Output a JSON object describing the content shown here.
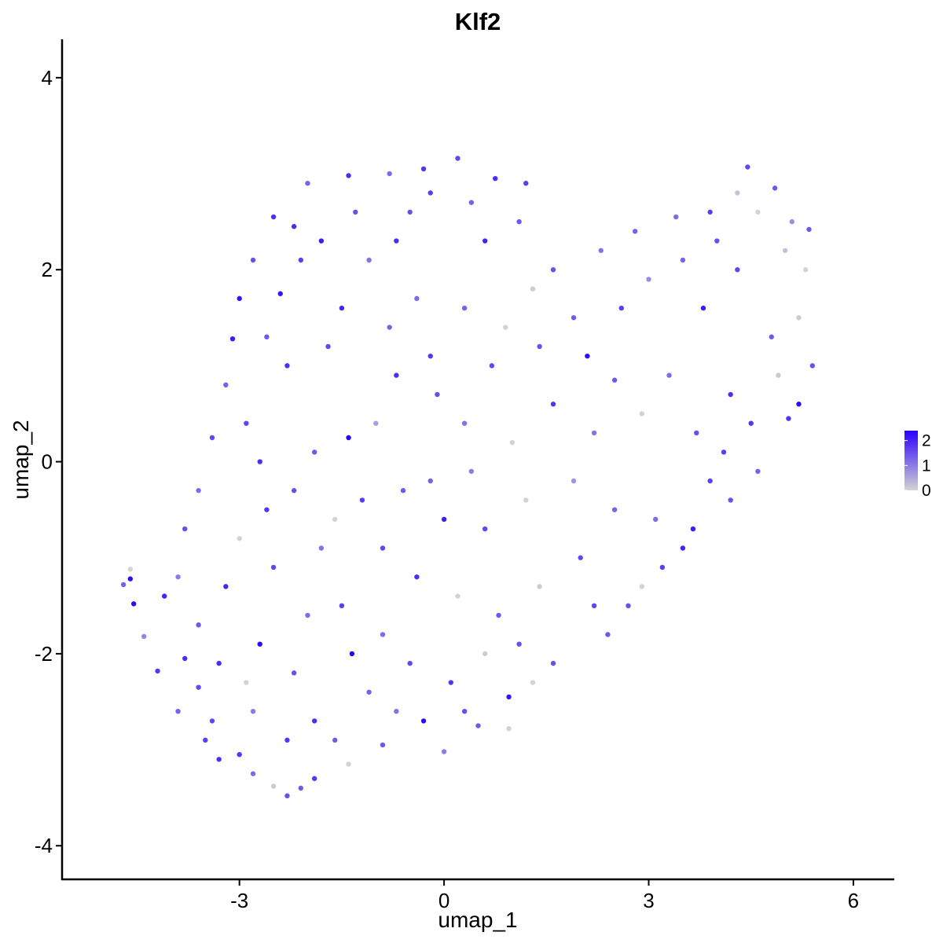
{
  "chart_data": {
    "type": "scatter",
    "title": "Klf2",
    "xlabel": "umap_1",
    "ylabel": "umap_2",
    "xlim": [
      -5.6,
      6.6
    ],
    "ylim": [
      -4.35,
      4.4
    ],
    "xticks": [
      -3,
      0,
      3,
      6
    ],
    "xtick_labels": [
      "-3",
      "0",
      "3",
      "6"
    ],
    "yticks": [
      -4,
      -2,
      0,
      2,
      4
    ],
    "ytick_labels": [
      "-4",
      "-2",
      "0",
      "2",
      "4"
    ],
    "grid": false,
    "color_scale": {
      "name": "expression",
      "low_color": "#d3d3d3",
      "high_color": "#2b00ff",
      "min": 0,
      "max": 2.4,
      "ticks": [
        0,
        1,
        2
      ],
      "tick_labels": [
        "0",
        "1",
        "2"
      ]
    },
    "legend_position": "right",
    "points": [
      {
        "x": -4.7,
        "y": -1.28,
        "v": 1.3
      },
      {
        "x": -4.6,
        "y": -1.12,
        "v": 0.0
      },
      {
        "x": -4.6,
        "y": -1.22,
        "v": 2.3
      },
      {
        "x": -4.55,
        "y": -1.48,
        "v": 2.3
      },
      {
        "x": -4.4,
        "y": -1.82,
        "v": 0.9
      },
      {
        "x": -4.2,
        "y": -2.18,
        "v": 1.8
      },
      {
        "x": -4.1,
        "y": -1.4,
        "v": 2.0
      },
      {
        "x": -3.9,
        "y": -2.6,
        "v": 1.3
      },
      {
        "x": -3.8,
        "y": -2.05,
        "v": 1.9
      },
      {
        "x": -3.6,
        "y": -2.35,
        "v": 1.6
      },
      {
        "x": -3.5,
        "y": -2.9,
        "v": 1.7
      },
      {
        "x": -3.3,
        "y": -3.1,
        "v": 1.9
      },
      {
        "x": -3.0,
        "y": -3.05,
        "v": 1.8
      },
      {
        "x": -2.8,
        "y": -3.25,
        "v": 1.2
      },
      {
        "x": -2.5,
        "y": -3.38,
        "v": 0.1
      },
      {
        "x": -2.3,
        "y": -3.48,
        "v": 1.5
      },
      {
        "x": -2.1,
        "y": -3.4,
        "v": 1.4
      },
      {
        "x": -1.9,
        "y": -3.3,
        "v": 1.8
      },
      {
        "x": -1.4,
        "y": -3.15,
        "v": 0.0
      },
      {
        "x": -0.9,
        "y": -2.95,
        "v": 1.4
      },
      {
        "x": -0.3,
        "y": -2.7,
        "v": 2.3
      },
      {
        "x": 0.0,
        "y": -3.02,
        "v": 1.0
      },
      {
        "x": 0.5,
        "y": -2.75,
        "v": 1.4
      },
      {
        "x": 0.95,
        "y": -2.78,
        "v": 0.0
      },
      {
        "x": 0.95,
        "y": -2.45,
        "v": 2.2
      },
      {
        "x": 1.6,
        "y": -2.1,
        "v": 1.5
      },
      {
        "x": 2.4,
        "y": -1.8,
        "v": 1.4
      },
      {
        "x": 2.7,
        "y": -1.5,
        "v": 1.5
      },
      {
        "x": 3.2,
        "y": -1.1,
        "v": 1.7
      },
      {
        "x": 3.5,
        "y": -0.9,
        "v": 2.0
      },
      {
        "x": 3.65,
        "y": -0.7,
        "v": 2.1
      },
      {
        "x": 4.2,
        "y": -0.4,
        "v": 1.5
      },
      {
        "x": 4.6,
        "y": -0.1,
        "v": 1.3
      },
      {
        "x": 5.05,
        "y": 0.45,
        "v": 1.8
      },
      {
        "x": 5.2,
        "y": 0.6,
        "v": 2.3
      },
      {
        "x": 5.4,
        "y": 1.0,
        "v": 1.5
      },
      {
        "x": 5.2,
        "y": 1.5,
        "v": 0.1
      },
      {
        "x": 5.3,
        "y": 2.0,
        "v": 0.0
      },
      {
        "x": 5.35,
        "y": 2.42,
        "v": 1.4
      },
      {
        "x": 5.1,
        "y": 2.5,
        "v": 0.8
      },
      {
        "x": 4.85,
        "y": 2.85,
        "v": 1.4
      },
      {
        "x": 4.45,
        "y": 3.07,
        "v": 1.6
      },
      {
        "x": 4.3,
        "y": 2.8,
        "v": 0.2
      },
      {
        "x": 3.9,
        "y": 2.6,
        "v": 1.7
      },
      {
        "x": 3.4,
        "y": 2.55,
        "v": 1.2
      },
      {
        "x": 2.8,
        "y": 2.4,
        "v": 1.3
      },
      {
        "x": 2.3,
        "y": 2.2,
        "v": 1.1
      },
      {
        "x": 1.6,
        "y": 2.0,
        "v": 1.5
      },
      {
        "x": 1.2,
        "y": 2.9,
        "v": 1.7
      },
      {
        "x": 1.1,
        "y": 2.5,
        "v": 1.4
      },
      {
        "x": 0.75,
        "y": 2.95,
        "v": 1.9
      },
      {
        "x": 0.2,
        "y": 3.16,
        "v": 1.6
      },
      {
        "x": -0.3,
        "y": 3.05,
        "v": 1.8
      },
      {
        "x": -0.8,
        "y": 3.0,
        "v": 1.2
      },
      {
        "x": -1.4,
        "y": 2.98,
        "v": 1.9
      },
      {
        "x": -2.0,
        "y": 2.9,
        "v": 1.3
      },
      {
        "x": -2.5,
        "y": 2.55,
        "v": 1.9
      },
      {
        "x": -2.8,
        "y": 2.1,
        "v": 1.5
      },
      {
        "x": -3.0,
        "y": 1.7,
        "v": 2.2
      },
      {
        "x": -3.1,
        "y": 1.28,
        "v": 2.1
      },
      {
        "x": -3.2,
        "y": 0.8,
        "v": 1.3
      },
      {
        "x": -3.4,
        "y": 0.25,
        "v": 1.6
      },
      {
        "x": -3.6,
        "y": -0.3,
        "v": 1.2
      },
      {
        "x": -3.8,
        "y": -0.7,
        "v": 1.5
      },
      {
        "x": -3.9,
        "y": -1.2,
        "v": 1.0
      },
      {
        "x": -2.7,
        "y": -1.9,
        "v": 2.3
      },
      {
        "x": -2.0,
        "y": -1.6,
        "v": 1.2
      },
      {
        "x": -1.4,
        "y": 0.25,
        "v": 2.4
      },
      {
        "x": -1.35,
        "y": -2.0,
        "v": 2.4
      },
      {
        "x": -2.4,
        "y": 1.75,
        "v": 2.2
      },
      {
        "x": -2.2,
        "y": 2.45,
        "v": 1.9
      },
      {
        "x": -1.7,
        "y": 1.2,
        "v": 1.6
      },
      {
        "x": -1.1,
        "y": 2.1,
        "v": 1.1
      },
      {
        "x": -0.7,
        "y": 0.9,
        "v": 1.9
      },
      {
        "x": -0.4,
        "y": 1.7,
        "v": 1.2
      },
      {
        "x": -0.1,
        "y": 0.7,
        "v": 1.5
      },
      {
        "x": -0.6,
        "y": -0.3,
        "v": 1.4
      },
      {
        "x": -1.2,
        "y": -0.4,
        "v": 1.7
      },
      {
        "x": -1.8,
        "y": -0.9,
        "v": 1.1
      },
      {
        "x": -2.6,
        "y": -0.5,
        "v": 1.8
      },
      {
        "x": -3.0,
        "y": -0.8,
        "v": 0.0
      },
      {
        "x": -2.9,
        "y": 0.4,
        "v": 1.6
      },
      {
        "x": -2.3,
        "y": 1.0,
        "v": 1.9
      },
      {
        "x": -1.9,
        "y": 0.1,
        "v": 1.4
      },
      {
        "x": -1.0,
        "y": 0.4,
        "v": 0.6
      },
      {
        "x": -0.5,
        "y": 2.6,
        "v": 1.5
      },
      {
        "x": 0.6,
        "y": 2.3,
        "v": 2.0
      },
      {
        "x": 0.3,
        "y": 1.6,
        "v": 1.3
      },
      {
        "x": 0.9,
        "y": 1.4,
        "v": 0.0
      },
      {
        "x": 1.4,
        "y": 1.2,
        "v": 1.5
      },
      {
        "x": 2.1,
        "y": 1.1,
        "v": 2.3
      },
      {
        "x": 2.5,
        "y": 0.85,
        "v": 1.4
      },
      {
        "x": 3.0,
        "y": 1.9,
        "v": 0.8
      },
      {
        "x": 3.8,
        "y": 1.6,
        "v": 2.1
      },
      {
        "x": 4.3,
        "y": 2.0,
        "v": 1.6
      },
      {
        "x": 4.8,
        "y": 1.3,
        "v": 1.4
      },
      {
        "x": 4.2,
        "y": 0.7,
        "v": 1.9
      },
      {
        "x": 3.7,
        "y": 0.3,
        "v": 1.5
      },
      {
        "x": 3.3,
        "y": 0.9,
        "v": 1.2
      },
      {
        "x": 2.9,
        "y": 0.5,
        "v": 0.0
      },
      {
        "x": 2.2,
        "y": 0.3,
        "v": 1.1
      },
      {
        "x": 1.6,
        "y": 0.6,
        "v": 1.8
      },
      {
        "x": 1.0,
        "y": 0.2,
        "v": 0.0
      },
      {
        "x": 0.4,
        "y": -0.1,
        "v": 1.0
      },
      {
        "x": 0.0,
        "y": -0.6,
        "v": 2.1
      },
      {
        "x": 0.6,
        "y": -0.7,
        "v": 1.6
      },
      {
        "x": 1.2,
        "y": -0.4,
        "v": 0.0
      },
      {
        "x": 1.9,
        "y": -0.2,
        "v": 0.7
      },
      {
        "x": 2.5,
        "y": -0.5,
        "v": 1.3
      },
      {
        "x": 2.0,
        "y": -1.0,
        "v": 1.6
      },
      {
        "x": 1.4,
        "y": -1.3,
        "v": 0.1
      },
      {
        "x": 0.8,
        "y": -1.6,
        "v": 1.4
      },
      {
        "x": 0.2,
        "y": -1.4,
        "v": 0.0
      },
      {
        "x": -0.4,
        "y": -1.2,
        "v": 1.9
      },
      {
        "x": -0.9,
        "y": -1.8,
        "v": 1.2
      },
      {
        "x": -1.5,
        "y": -1.5,
        "v": 1.7
      },
      {
        "x": -2.2,
        "y": -2.2,
        "v": 1.5
      },
      {
        "x": -2.8,
        "y": -2.6,
        "v": 1.0
      },
      {
        "x": -3.3,
        "y": -2.1,
        "v": 1.9
      },
      {
        "x": -3.6,
        "y": -1.7,
        "v": 1.4
      },
      {
        "x": -3.2,
        "y": -1.3,
        "v": 2.0
      },
      {
        "x": -2.5,
        "y": -1.1,
        "v": 1.6
      },
      {
        "x": -1.9,
        "y": -2.7,
        "v": 1.9
      },
      {
        "x": -1.1,
        "y": -2.4,
        "v": 1.3
      },
      {
        "x": -0.5,
        "y": -2.1,
        "v": 1.6
      },
      {
        "x": 0.1,
        "y": -2.3,
        "v": 1.8
      },
      {
        "x": 0.6,
        "y": -2.0,
        "v": 0.1
      },
      {
        "x": 1.1,
        "y": -1.9,
        "v": 1.5
      },
      {
        "x": 2.9,
        "y": -1.3,
        "v": 0.0
      },
      {
        "x": 3.9,
        "y": -0.2,
        "v": 1.7
      },
      {
        "x": 4.5,
        "y": 0.4,
        "v": 1.8
      },
      {
        "x": 4.9,
        "y": 0.9,
        "v": 0.1
      },
      {
        "x": 5.0,
        "y": 2.2,
        "v": 0.2
      },
      {
        "x": 4.6,
        "y": 2.6,
        "v": 0.0
      },
      {
        "x": 4.0,
        "y": 2.3,
        "v": 1.5
      },
      {
        "x": 3.5,
        "y": 2.1,
        "v": 1.3
      },
      {
        "x": 2.6,
        "y": 1.6,
        "v": 1.7
      },
      {
        "x": 1.9,
        "y": 1.5,
        "v": 1.4
      },
      {
        "x": 1.3,
        "y": 1.8,
        "v": 0.1
      },
      {
        "x": 0.7,
        "y": 1.0,
        "v": 1.6
      },
      {
        "x": -0.2,
        "y": 1.1,
        "v": 1.8
      },
      {
        "x": -0.8,
        "y": 1.4,
        "v": 1.3
      },
      {
        "x": -1.5,
        "y": 1.6,
        "v": 2.0
      },
      {
        "x": -2.1,
        "y": 2.1,
        "v": 1.7
      },
      {
        "x": -2.6,
        "y": 1.3,
        "v": 1.4
      },
      {
        "x": -2.7,
        "y": 0.0,
        "v": 1.9
      },
      {
        "x": -2.2,
        "y": -0.3,
        "v": 1.5
      },
      {
        "x": -1.6,
        "y": -0.6,
        "v": 0.0
      },
      {
        "x": -0.9,
        "y": -0.9,
        "v": 1.6
      },
      {
        "x": -0.2,
        "y": -0.2,
        "v": 1.3
      },
      {
        "x": 0.3,
        "y": 0.4,
        "v": 1.1
      },
      {
        "x": -0.7,
        "y": 2.3,
        "v": 1.9
      },
      {
        "x": -1.3,
        "y": 2.6,
        "v": 1.5
      },
      {
        "x": -1.8,
        "y": 2.3,
        "v": 2.1
      },
      {
        "x": -0.2,
        "y": 2.8,
        "v": 1.7
      },
      {
        "x": 0.4,
        "y": 2.7,
        "v": 1.3
      },
      {
        "x": -3.4,
        "y": -2.7,
        "v": 1.6
      },
      {
        "x": -2.9,
        "y": -2.3,
        "v": 0.0
      },
      {
        "x": -2.3,
        "y": -2.9,
        "v": 1.8
      },
      {
        "x": -1.6,
        "y": -2.9,
        "v": 1.4
      },
      {
        "x": -0.7,
        "y": -2.6,
        "v": 1.1
      },
      {
        "x": 0.3,
        "y": -2.6,
        "v": 1.5
      },
      {
        "x": 1.3,
        "y": -2.3,
        "v": 0.0
      },
      {
        "x": 2.2,
        "y": -1.5,
        "v": 1.6
      },
      {
        "x": 3.1,
        "y": -0.6,
        "v": 1.2
      },
      {
        "x": 4.1,
        "y": 0.1,
        "v": 1.7
      }
    ]
  }
}
